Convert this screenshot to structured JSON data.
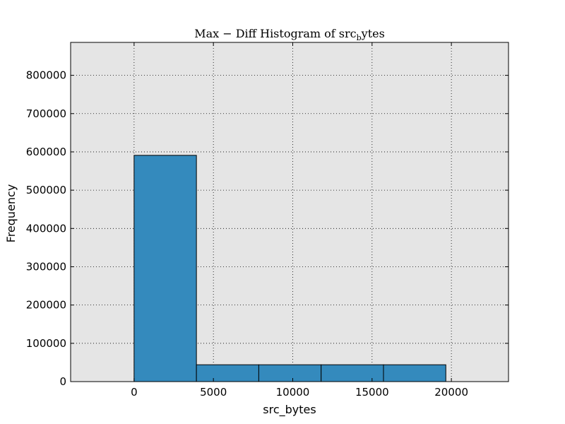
{
  "chart_data": {
    "type": "bar",
    "title": {
      "main": "Max − Diff Histogram of src",
      "subscript": "b",
      "suffix": "ytes"
    },
    "xlabel": "src_bytes",
    "ylabel": "Frequency",
    "xlim": [
      -4000,
      23600
    ],
    "ylim": [
      0,
      886000
    ],
    "xticks": [
      0,
      5000,
      10000,
      15000,
      20000
    ],
    "yticks": [
      0,
      100000,
      200000,
      300000,
      400000,
      500000,
      600000,
      700000,
      800000
    ],
    "grid": true,
    "bins": [
      {
        "x0": 0,
        "x1": 3930,
        "value": 591000
      },
      {
        "x0": 3930,
        "x1": 7860,
        "value": 44000
      },
      {
        "x0": 7860,
        "x1": 11790,
        "value": 44000
      },
      {
        "x0": 11790,
        "x1": 15720,
        "value": 44000
      },
      {
        "x0": 15720,
        "x1": 19650,
        "value": 44000
      }
    ],
    "colors": {
      "bar": "#348abd",
      "plot_background": "#e5e5e5",
      "edge": "#000000",
      "grid": "#000000"
    }
  }
}
